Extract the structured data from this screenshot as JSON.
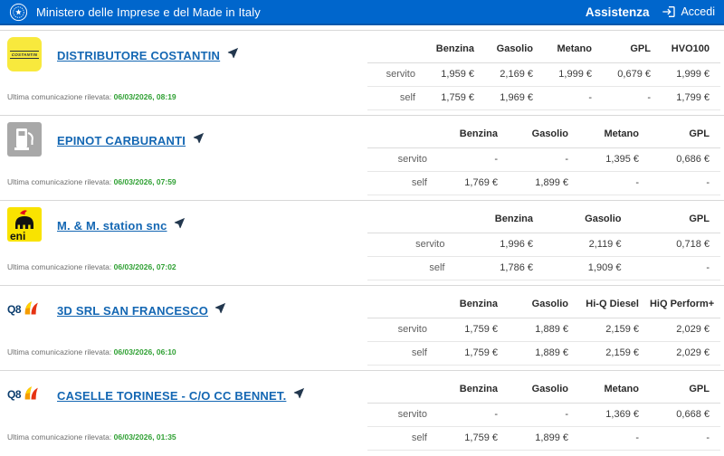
{
  "header": {
    "title": "Ministero delle Imprese e del Made in Italy",
    "assistenza_label": "Assistenza",
    "accedi_label": "Accedi"
  },
  "labels": {
    "last_report": "Ultima comunicazione rilevata:"
  },
  "icons": {
    "emblem": "italy-republic-emblem-icon",
    "login": "login-arrow-icon",
    "navigate": "navigate-location-arrow-icon"
  },
  "colors": {
    "header_blue": "#0066cc",
    "header_blue_dark": "#0257ab",
    "link_blue": "#1467b3",
    "report_green": "#2fa033",
    "separator": "#d8d8d8",
    "costantin_yellow": "#f8e93d",
    "eni_yellow": "#f9e300",
    "pump_gray": "#a8a8a8",
    "q8_navy": "#0b3d6e"
  },
  "stations": [
    {
      "name": "DISTRIBUTORE COSTANTIN",
      "brand": "costantin",
      "brand_logo": "costantin-logo",
      "last_report": "06/03/2026, 08:19",
      "columns": [
        "Benzina",
        "Gasolio",
        "Metano",
        "GPL",
        "HVO100"
      ],
      "rows": [
        {
          "label": "servito",
          "values": [
            "1,959 €",
            "2,169 €",
            "1,999 €",
            "0,679 €",
            "1,999 €"
          ]
        },
        {
          "label": "self",
          "values": [
            "1,759 €",
            "1,969 €",
            "-",
            "-",
            "1,799 €"
          ]
        }
      ]
    },
    {
      "name": "EPINOT CARBURANTI",
      "brand": "pump",
      "brand_logo": "generic-fuel-pump-logo",
      "last_report": "06/03/2026, 07:59",
      "columns": [
        "Benzina",
        "Gasolio",
        "Metano",
        "GPL"
      ],
      "rows": [
        {
          "label": "servito",
          "values": [
            "-",
            "-",
            "1,395 €",
            "0,686 €"
          ]
        },
        {
          "label": "self",
          "values": [
            "1,769 €",
            "1,899 €",
            "-",
            "-"
          ]
        }
      ]
    },
    {
      "name": "M. & M. station snc",
      "brand": "eni",
      "brand_logo": "eni-logo",
      "last_report": "06/03/2026, 07:02",
      "columns": [
        "Benzina",
        "Gasolio",
        "GPL"
      ],
      "rows": [
        {
          "label": "servito",
          "values": [
            "1,996 €",
            "2,119 €",
            "0,718 €"
          ]
        },
        {
          "label": "self",
          "values": [
            "1,786 €",
            "1,909 €",
            "-"
          ]
        }
      ]
    },
    {
      "name": "3D SRL SAN FRANCESCO",
      "brand": "q8",
      "brand_logo": "q8-logo",
      "last_report": "06/03/2026, 06:10",
      "columns": [
        "Benzina",
        "Gasolio",
        "Hi-Q Diesel",
        "HiQ Perform+"
      ],
      "rows": [
        {
          "label": "servito",
          "values": [
            "1,759 €",
            "1,889 €",
            "2,159 €",
            "2,029 €"
          ]
        },
        {
          "label": "self",
          "values": [
            "1,759 €",
            "1,889 €",
            "2,159 €",
            "2,029 €"
          ]
        }
      ]
    },
    {
      "name": "CASELLE TORINESE - C/O CC BENNET.",
      "brand": "q8",
      "brand_logo": "q8-logo",
      "last_report": "06/03/2026, 01:35",
      "columns": [
        "Benzina",
        "Gasolio",
        "Metano",
        "GPL"
      ],
      "rows": [
        {
          "label": "servito",
          "values": [
            "-",
            "-",
            "1,369 €",
            "0,668 €"
          ]
        },
        {
          "label": "self",
          "values": [
            "1,759 €",
            "1,899 €",
            "-",
            "-"
          ]
        }
      ]
    }
  ]
}
